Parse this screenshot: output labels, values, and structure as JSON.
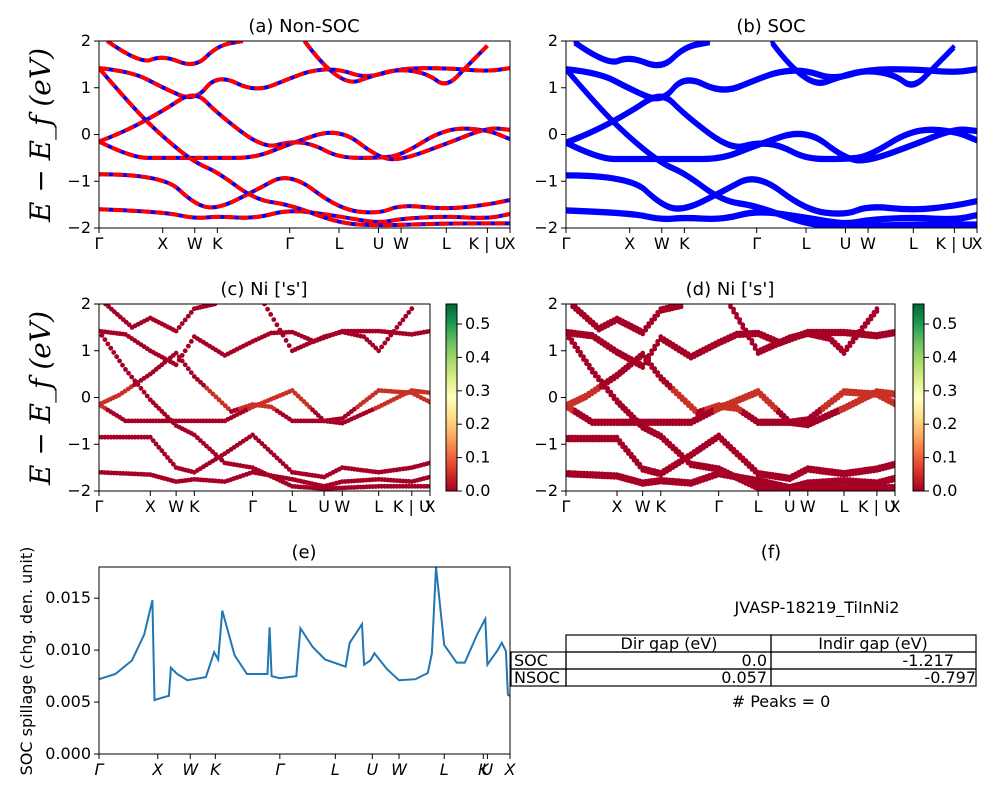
{
  "colors": {
    "nonsoc_a": "#0000ff",
    "nonsoc_b": "#ff0000",
    "soc": "#0000ff",
    "spillage": "#1f77b4",
    "colormap": [
      "#a50026",
      "#d73027",
      "#f46d43",
      "#fdae61",
      "#fee08b",
      "#ffffbf",
      "#d9ef8b",
      "#a6d96a",
      "#66bd63",
      "#1a9850",
      "#006837"
    ]
  },
  "chart_data": [
    {
      "id": "a",
      "type": "line",
      "title": "(a) Non-SOC",
      "ylabel": "E − E_f (eV)",
      "ylim": [
        -2,
        2
      ],
      "yticks": [
        "2",
        "1",
        "0",
        "−1",
        "−2"
      ],
      "kpath": [
        "Γ",
        "X",
        "W",
        "K",
        "Γ",
        "L",
        "U",
        "W",
        "L",
        "K | U",
        "X"
      ],
      "kpos": [
        0,
        0.155,
        0.233,
        0.288,
        0.464,
        0.584,
        0.68,
        0.735,
        0.845,
        0.945,
        1.0
      ],
      "series": [
        {
          "values": [
            [
              0,
              1.42
            ],
            [
              0.08,
              1.35
            ],
            [
              0.155,
              1.0
            ],
            [
              0.233,
              0.7
            ],
            [
              0.288,
              1.3
            ],
            [
              0.38,
              0.9
            ],
            [
              0.464,
              1.2
            ],
            [
              0.52,
              1.38
            ],
            [
              0.584,
              1.4
            ],
            [
              0.65,
              1.2
            ],
            [
              0.735,
              1.42
            ],
            [
              0.845,
              1.42
            ],
            [
              0.945,
              1.35
            ],
            [
              1.0,
              1.42
            ]
          ]
        },
        {
          "values": [
            [
              0,
              -0.15
            ],
            [
              0.06,
              0.05
            ],
            [
              0.155,
              0.5
            ],
            [
              0.233,
              0.95
            ],
            [
              0.288,
              0.45
            ],
            [
              0.4,
              -0.3
            ],
            [
              0.464,
              -0.15
            ],
            [
              0.52,
              -0.2
            ],
            [
              0.584,
              -0.5
            ],
            [
              0.68,
              -0.5
            ],
            [
              0.735,
              -0.45
            ],
            [
              0.845,
              0.15
            ],
            [
              0.945,
              0.1
            ],
            [
              1.0,
              -0.1
            ]
          ]
        },
        {
          "values": [
            [
              0,
              -0.15
            ],
            [
              0.08,
              -0.5
            ],
            [
              0.155,
              -0.5
            ],
            [
              0.233,
              -0.5
            ],
            [
              0.288,
              -0.5
            ],
            [
              0.38,
              -0.5
            ],
            [
              0.464,
              -0.2
            ],
            [
              0.584,
              0.15
            ],
            [
              0.68,
              -0.5
            ],
            [
              0.735,
              -0.55
            ],
            [
              0.845,
              -0.2
            ],
            [
              0.945,
              0.15
            ],
            [
              1.0,
              0.1
            ]
          ]
        },
        {
          "values": [
            [
              0,
              -0.85
            ],
            [
              0.155,
              -0.85
            ],
            [
              0.233,
              -1.5
            ],
            [
              0.288,
              -1.6
            ],
            [
              0.38,
              -1.2
            ],
            [
              0.464,
              -0.8
            ],
            [
              0.584,
              -1.6
            ],
            [
              0.68,
              -1.7
            ],
            [
              0.735,
              -1.5
            ],
            [
              0.845,
              -1.6
            ],
            [
              0.945,
              -1.5
            ],
            [
              1.0,
              -1.4
            ]
          ]
        },
        {
          "values": [
            [
              0,
              -1.6
            ],
            [
              0.155,
              -1.65
            ],
            [
              0.233,
              -1.8
            ],
            [
              0.288,
              -1.75
            ],
            [
              0.38,
              -1.8
            ],
            [
              0.464,
              -1.6
            ],
            [
              0.584,
              -1.75
            ],
            [
              0.68,
              -1.9
            ],
            [
              0.735,
              -1.8
            ],
            [
              0.845,
              -1.75
            ],
            [
              0.945,
              -1.8
            ],
            [
              1.0,
              -1.7
            ]
          ]
        },
        {
          "values": [
            [
              0,
              1.42
            ],
            [
              0.08,
              0.6
            ],
            [
              0.155,
              -0.05
            ],
            [
              0.233,
              -0.6
            ],
            [
              0.288,
              -0.8
            ],
            [
              0.38,
              -1.4
            ],
            [
              0.464,
              -1.5
            ],
            [
              0.584,
              -1.9
            ],
            [
              0.68,
              -1.95
            ],
            [
              0.845,
              -1.9
            ],
            [
              1.0,
              -1.9
            ]
          ]
        },
        {
          "values": [
            [
              0.02,
              2
            ],
            [
              0.1,
              1.5
            ],
            [
              0.155,
              1.7
            ],
            [
              0.233,
              1.42
            ],
            [
              0.288,
              1.9
            ],
            [
              0.35,
              2
            ]
          ]
        },
        {
          "values": [
            [
              0.5,
              2
            ],
            [
              0.584,
              1.0
            ],
            [
              0.68,
              1.3
            ],
            [
              0.735,
              1.4
            ],
            [
              0.8,
              1.3
            ],
            [
              0.845,
              1.0
            ],
            [
              0.9,
              1.5
            ],
            [
              0.945,
              1.9
            ]
          ]
        }
      ]
    },
    {
      "id": "b",
      "type": "line",
      "title": "(b) SOC",
      "ylim": [
        -2,
        2
      ],
      "yticks": [
        "2",
        "1",
        "0",
        "−1",
        "−2"
      ],
      "kpath": [
        "Γ",
        "X",
        "W",
        "K",
        "Γ",
        "L",
        "U",
        "W",
        "L",
        "K | U",
        "X"
      ],
      "kpos": [
        0,
        0.155,
        0.233,
        0.288,
        0.464,
        0.584,
        0.68,
        0.735,
        0.845,
        0.945,
        1.0
      ]
    },
    {
      "id": "c",
      "type": "scatter",
      "title": "(c)  Ni ['s']",
      "ylabel": "E − E_f (eV)",
      "ylim": [
        -2,
        2
      ],
      "yticks": [
        "2",
        "1",
        "0",
        "−1",
        "−2"
      ],
      "kpath": [
        "Γ",
        "X",
        "W",
        "K",
        "Γ",
        "L",
        "U",
        "W",
        "L",
        "K | U",
        "X"
      ],
      "kpos": [
        0,
        0.155,
        0.233,
        0.288,
        0.464,
        0.584,
        0.68,
        0.735,
        0.845,
        0.945,
        1.0
      ],
      "colorbar": {
        "min": 0.0,
        "max": 0.56,
        "ticks": [
          "0.5",
          "0.4",
          "0.3",
          "0.2",
          "0.1",
          "0.0"
        ]
      }
    },
    {
      "id": "d",
      "type": "scatter",
      "title": "(d) Ni ['s']",
      "ylim": [
        -2,
        2
      ],
      "yticks": [
        "2",
        "1",
        "0",
        "−1",
        "−2"
      ],
      "kpath": [
        "Γ",
        "X",
        "W",
        "K",
        "Γ",
        "L",
        "U",
        "W",
        "L",
        "K | U",
        "X"
      ],
      "kpos": [
        0,
        0.155,
        0.233,
        0.288,
        0.464,
        0.584,
        0.68,
        0.735,
        0.845,
        0.945,
        1.0
      ],
      "colorbar": {
        "min": 0.0,
        "max": 0.56,
        "ticks": [
          "0.5",
          "0.4",
          "0.3",
          "0.2",
          "0.1",
          "0.0"
        ]
      }
    },
    {
      "id": "e",
      "type": "line",
      "title": "(e)",
      "ylabel": "SOC spillage (chg. den. unit)",
      "ylim": [
        0,
        0.018
      ],
      "yticks": [
        "0.015",
        "0.010",
        "0.005",
        "0.000"
      ],
      "ytick_values": [
        0.015,
        0.01,
        0.005,
        0.0
      ],
      "kpath": [
        "Γ",
        "X",
        "W",
        "K",
        "Γ",
        "L",
        "U",
        "W",
        "L",
        "K",
        "U",
        "X"
      ],
      "kpos": [
        0,
        0.143,
        0.222,
        0.283,
        0.44,
        0.575,
        0.665,
        0.73,
        0.84,
        0.935,
        0.945,
        1.0
      ],
      "values": [
        [
          0,
          0.0072
        ],
        [
          0.04,
          0.0077
        ],
        [
          0.08,
          0.009
        ],
        [
          0.11,
          0.0115
        ],
        [
          0.13,
          0.0148
        ],
        [
          0.135,
          0.0052
        ],
        [
          0.16,
          0.0055
        ],
        [
          0.17,
          0.0056
        ],
        [
          0.175,
          0.0083
        ],
        [
          0.19,
          0.0077
        ],
        [
          0.215,
          0.0071
        ],
        [
          0.26,
          0.0074
        ],
        [
          0.28,
          0.0098
        ],
        [
          0.29,
          0.0091
        ],
        [
          0.3,
          0.0138
        ],
        [
          0.33,
          0.0095
        ],
        [
          0.36,
          0.0077
        ],
        [
          0.41,
          0.0077
        ],
        [
          0.415,
          0.0122
        ],
        [
          0.42,
          0.0075
        ],
        [
          0.44,
          0.0073
        ],
        [
          0.48,
          0.0075
        ],
        [
          0.49,
          0.0121
        ],
        [
          0.52,
          0.0103
        ],
        [
          0.55,
          0.0091
        ],
        [
          0.6,
          0.0084
        ],
        [
          0.61,
          0.0107
        ],
        [
          0.64,
          0.0125
        ],
        [
          0.645,
          0.0086
        ],
        [
          0.66,
          0.009
        ],
        [
          0.67,
          0.0097
        ],
        [
          0.7,
          0.0082
        ],
        [
          0.73,
          0.0071
        ],
        [
          0.77,
          0.0072
        ],
        [
          0.8,
          0.0078
        ],
        [
          0.81,
          0.0097
        ],
        [
          0.82,
          0.018
        ],
        [
          0.84,
          0.0105
        ],
        [
          0.87,
          0.0088
        ],
        [
          0.89,
          0.0088
        ],
        [
          0.92,
          0.0115
        ],
        [
          0.94,
          0.013
        ],
        [
          0.945,
          0.0086
        ],
        [
          0.97,
          0.01
        ],
        [
          0.98,
          0.0107
        ],
        [
          0.99,
          0.0099
        ],
        [
          0.995,
          0.0057
        ],
        [
          1.0,
          0.0056
        ]
      ]
    }
  ],
  "panel_f": {
    "title": "(f)",
    "label": "JVASP-18219_TiInNi2",
    "headers": [
      "Dir gap (eV)",
      "Indir gap (eV)"
    ],
    "rows": [
      {
        "name": "SOC",
        "dir": "0.0",
        "indir": "-1.217"
      },
      {
        "name": "NSOC",
        "dir": "0.057",
        "indir": "-0.797"
      }
    ],
    "peaks": "# Peaks = 0"
  }
}
